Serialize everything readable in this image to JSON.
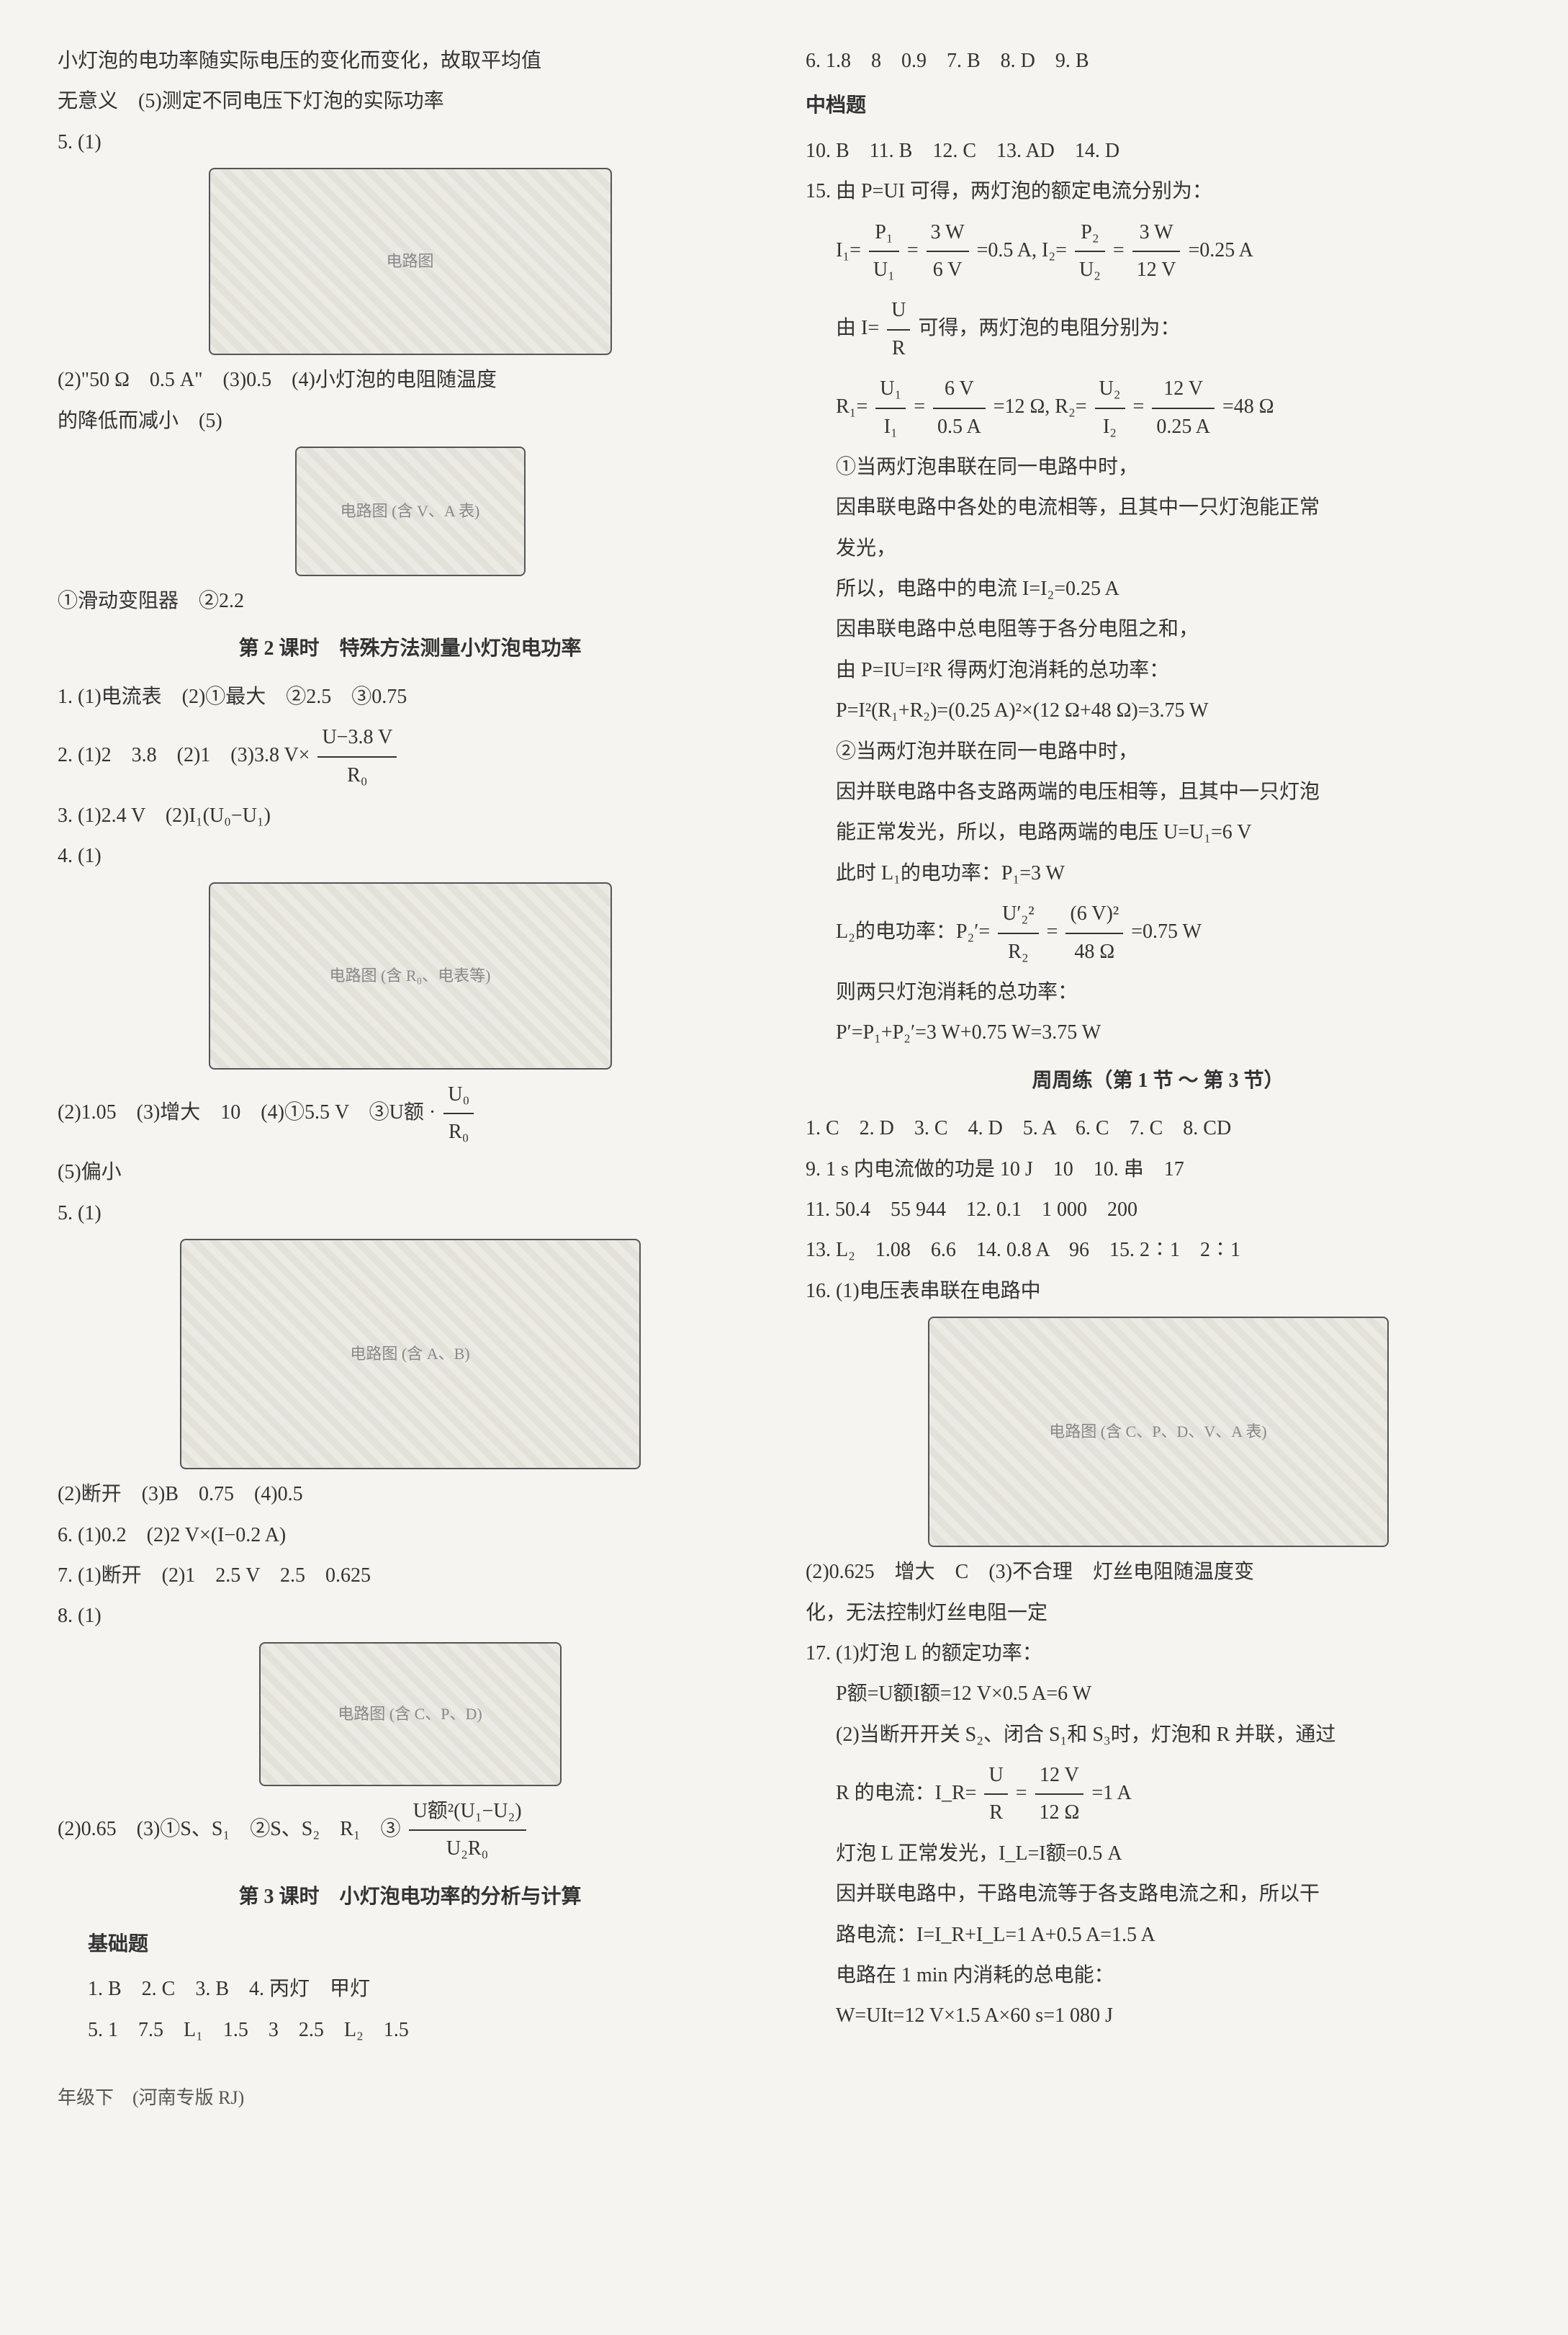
{
  "footer": "年级下　(河南专版 RJ)",
  "left": {
    "intro1": "小灯泡的电功率随实际电压的变化而变化，故取平均值",
    "intro2": "无意义　(5)测定不同电压下灯泡的实际功率",
    "p5_1": "5. (1)",
    "circuit1_label": "电路图",
    "p5_2": "(2)\"50 Ω　0.5 A\"　(3)0.5　(4)小灯泡的电阻随温度",
    "p5_3": "的降低而减小　(5)",
    "circuit2_label": "电路图 (含 V、A 表)",
    "p5_4": "①滑动变阻器　②2.2",
    "lesson2_heading": "第 2 课时　特殊方法测量小灯泡电功率",
    "l2_1": "1. (1)电流表　(2)①最大　②2.5　③0.75",
    "l2_2a": "2. (1)2　3.8　(2)1　(3)3.8 V×",
    "l2_2_num": "U−3.8 V",
    "l2_2_den": "R₀",
    "l2_3": "3. (1)2.4 V　(2)I₁(U₀−U₁)",
    "l2_4": "4. (1)",
    "circuit3_label": "电路图 (含 R₀、电表等)",
    "l2_4b_a": "(2)1.05　(3)增大　10　(4)①5.5 V　③U额 · ",
    "l2_4b_num": "U₀",
    "l2_4b_den": "R₀",
    "l2_4c": "(5)偏小",
    "l2_5": "5. (1)",
    "circuit4_label": "电路图 (含 A、B)",
    "l2_5b": "(2)断开　(3)B　0.75　(4)0.5",
    "l2_6": "6. (1)0.2　(2)2 V×(I−0.2 A)",
    "l2_7": "7. (1)断开　(2)1　2.5 V　2.5　0.625",
    "l2_8": "8. (1)",
    "circuit5_label": "电路图 (含 C、P、D)",
    "l2_8b_a": "(2)0.65　(3)①S、S₁　②S、S₂　R₁　③",
    "l2_8b_num": "U额²(U₁−U₂)",
    "l2_8b_den": "U₂R₀",
    "lesson3_heading": "第 3 课时　小灯泡电功率的分析与计算",
    "basic_heading": "基础题",
    "l3_1": "1. B　2. C　3. B　4. 丙灯　甲灯",
    "l3_5": "5. 1　7.5　L₁　1.5　3　2.5　L₂　1.5"
  },
  "right": {
    "r1": "6. 1.8　8　0.9　7. B　8. D　9. B",
    "mid_heading": "中档题",
    "r2": "10. B　11. B　12. C　13. AD　14. D",
    "r15_1": "15. 由 P=UI 可得，两灯泡的额定电流分别为：",
    "r15_i1a": "I₁=",
    "r15_i1_n1": "P₁",
    "r15_i1_d1": "U₁",
    "r15_eq1": "=",
    "r15_i1_n2": "3 W",
    "r15_i1_d2": "6 V",
    "r15_i1_e": "=0.5 A,  I₂=",
    "r15_i2_n1": "P₂",
    "r15_i2_d1": "U₂",
    "r15_eq2": "=",
    "r15_i2_n2": "3 W",
    "r15_i2_d2": "12 V",
    "r15_i2_e": "=0.25 A",
    "r15_2a": "由 I=",
    "r15_2_n": "U",
    "r15_2_d": "R",
    "r15_2b": " 可得，两灯泡的电阻分别为：",
    "r15_r1a": "R₁=",
    "r15_r1_n1": "U₁",
    "r15_r1_d1": "I₁",
    "r15_r1_eq1": "=",
    "r15_r1_n2": "6 V",
    "r15_r1_d2": "0.5 A",
    "r15_r1_e": "=12 Ω,  R₂=",
    "r15_r2_n1": "U₂",
    "r15_r2_d1": "I₂",
    "r15_r2_eq": "=",
    "r15_r2_n2": "12 V",
    "r15_r2_d2": "0.25 A",
    "r15_r2_e": "=48 Ω",
    "r15_3": "①当两灯泡串联在同一电路中时，",
    "r15_4": "因串联电路中各处的电流相等，且其中一只灯泡能正常",
    "r15_5": "发光，",
    "r15_6": "所以，电路中的电流 I=I₂=0.25 A",
    "r15_7": "因串联电路中总电阻等于各分电阻之和，",
    "r15_8": "由 P=IU=I²R 得两灯泡消耗的总功率：",
    "r15_9": "P=I²(R₁+R₂)=(0.25 A)²×(12 Ω+48 Ω)=3.75 W",
    "r15_10": "②当两灯泡并联在同一电路中时，",
    "r15_11": "因并联电路中各支路两端的电压相等，且其中一只灯泡",
    "r15_12": "能正常发光，所以，电路两端的电压 U=U₁=6 V",
    "r15_13": "此时 L₁的电功率：P₁=3 W",
    "r15_14a": "L₂的电功率：P₂′=",
    "r15_14_n1": "U′₂²",
    "r15_14_d1": "R₂",
    "r15_14_eq": "=",
    "r15_14_n2": "(6 V)²",
    "r15_14_d2": "48 Ω",
    "r15_14b": "=0.75 W",
    "r15_15": "则两只灯泡消耗的总功率：",
    "r15_16": "P′=P₁+P₂′=3 W+0.75 W=3.75 W",
    "weekly_heading": "周周练（第 1 节 ～ 第 3 节）",
    "w1": "1. C　2. D　3. C　4. D　5. A　6. C　7. C　8. CD",
    "w9": "9. 1 s 内电流做的功是 10 J　10　10. 串　17",
    "w11": "11. 50.4　55 944　12. 0.1　1 000　200",
    "w13": "13. L₂　1.08　6.6　14. 0.8 A　96　15. 2∶1　2∶1",
    "w16": "16. (1)电压表串联在电路中",
    "circuit6_label": "电路图 (含 C、P、D、V、A 表)",
    "w16b": "(2)0.625　增大　C　(3)不合理　灯丝电阻随温度变",
    "w16c": "化，无法控制灯丝电阻一定",
    "w17_1": "17. (1)灯泡 L 的额定功率：",
    "w17_2": "P额=U额I额=12 V×0.5 A=6 W",
    "w17_3": "(2)当断开开关 S₂、闭合 S₁和 S₃时，灯泡和 R 并联，通过",
    "w17_4a": "R 的电流：I_R=",
    "w17_4_n1": "U",
    "w17_4_d1": "R",
    "w17_4_eq": "=",
    "w17_4_n2": "12 V",
    "w17_4_d2": "12 Ω",
    "w17_4b": "=1 A",
    "w17_5": "灯泡 L 正常发光，I_L=I额=0.5 A",
    "w17_6": "因并联电路中，干路电流等于各支路电流之和，所以干",
    "w17_7": "路电流：I=I_R+I_L=1 A+0.5 A=1.5 A",
    "w17_8": "电路在 1 min 内消耗的总电能：",
    "w17_9": "W=UIt=12 V×1.5 A×60 s=1 080 J"
  }
}
